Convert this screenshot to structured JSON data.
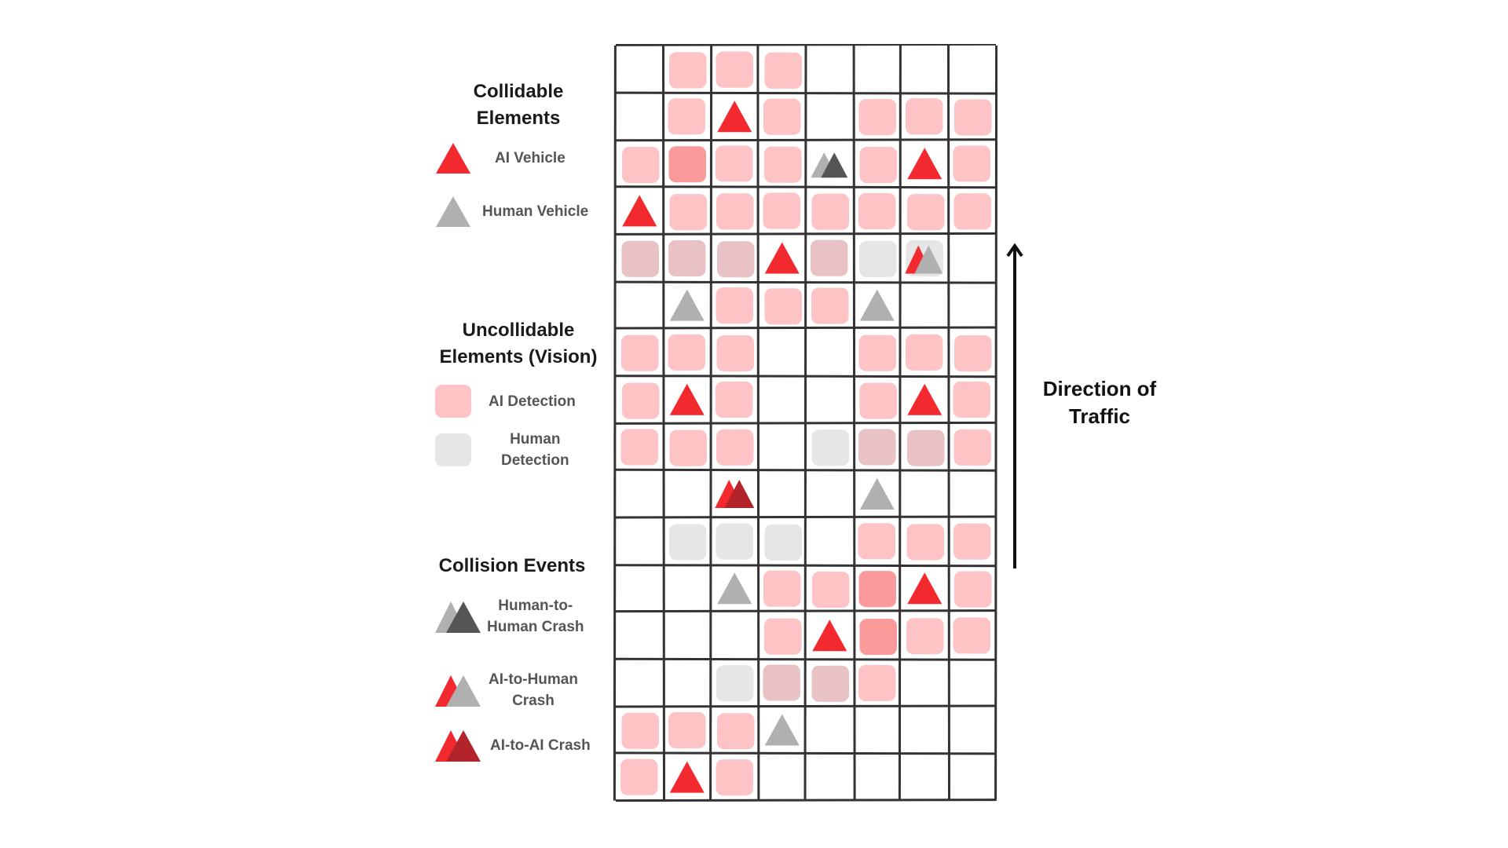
{
  "legend": {
    "collidable_title": "Collidable\nElements",
    "ai_vehicle": "AI Vehicle",
    "human_vehicle": "Human Vehicle",
    "uncollidable_title": "Uncollidable\nElements (Vision)",
    "ai_detection": "AI Detection",
    "human_detection": "Human\nDetection",
    "collision_title": "Collision Events",
    "human_to_human": "Human-to-\nHuman Crash",
    "ai_to_human": "AI-to-Human\nCrash",
    "ai_to_ai": "AI-to-AI Crash"
  },
  "traffic_label": "Direction of\nTraffic",
  "colors": {
    "ai_vehicle": "#f2292e",
    "ai_vehicle_dark": "#b3242a",
    "human_vehicle": "#b0b0b0",
    "human_vehicle_dark": "#555555",
    "ai_detection": "#fdc3c5",
    "ai_detection_strong": "#fb9a9a",
    "overlap_detection": "#e8c2c4",
    "human_detection": "#e6e6e6",
    "grid_line": "#333333"
  },
  "grid": {
    "rows": 16,
    "cols": 8,
    "cells": [
      [
        null,
        {
          "bg": "ai"
        },
        {
          "bg": "ai"
        },
        {
          "bg": "ai"
        },
        null,
        null,
        null,
        null
      ],
      [
        null,
        {
          "bg": "ai"
        },
        {
          "obj": "ai"
        },
        {
          "bg": "ai"
        },
        null,
        {
          "bg": "ai"
        },
        {
          "bg": "ai"
        },
        {
          "bg": "ai"
        }
      ],
      [
        {
          "bg": "ai"
        },
        {
          "bg": "strong"
        },
        {
          "bg": "ai"
        },
        {
          "bg": "ai"
        },
        {
          "obj": "hh"
        },
        {
          "bg": "ai"
        },
        {
          "obj": "ai"
        },
        {
          "bg": "ai"
        }
      ],
      [
        {
          "obj": "ai"
        },
        {
          "bg": "ai"
        },
        {
          "bg": "ai"
        },
        {
          "bg": "ai"
        },
        {
          "bg": "ai"
        },
        {
          "bg": "ai"
        },
        {
          "bg": "ai"
        },
        {
          "bg": "ai"
        }
      ],
      [
        {
          "bg": "overlap"
        },
        {
          "bg": "overlap"
        },
        {
          "bg": "overlap"
        },
        {
          "obj": "ai"
        },
        {
          "bg": "overlap"
        },
        {
          "bg": "human"
        },
        {
          "bg": "human",
          "obj": "ah"
        },
        null
      ],
      [
        null,
        {
          "obj": "human"
        },
        {
          "bg": "ai"
        },
        {
          "bg": "ai"
        },
        {
          "bg": "ai"
        },
        {
          "obj": "human"
        },
        null,
        null
      ],
      [
        {
          "bg": "ai"
        },
        {
          "bg": "ai"
        },
        {
          "bg": "ai"
        },
        null,
        null,
        {
          "bg": "ai"
        },
        {
          "bg": "ai"
        },
        {
          "bg": "ai"
        }
      ],
      [
        {
          "bg": "ai"
        },
        {
          "obj": "ai"
        },
        {
          "bg": "ai"
        },
        null,
        null,
        {
          "bg": "ai"
        },
        {
          "obj": "ai"
        },
        {
          "bg": "ai"
        }
      ],
      [
        {
          "bg": "ai"
        },
        {
          "bg": "ai"
        },
        {
          "bg": "ai"
        },
        null,
        {
          "bg": "human"
        },
        {
          "bg": "overlap"
        },
        {
          "bg": "overlap"
        },
        {
          "bg": "ai"
        }
      ],
      [
        null,
        null,
        {
          "obj": "aa"
        },
        null,
        null,
        {
          "obj": "human"
        },
        null,
        null
      ],
      [
        null,
        {
          "bg": "human"
        },
        {
          "bg": "human"
        },
        {
          "bg": "human"
        },
        null,
        {
          "bg": "ai"
        },
        {
          "bg": "ai"
        },
        {
          "bg": "ai"
        }
      ],
      [
        null,
        null,
        {
          "obj": "human"
        },
        {
          "bg": "ai"
        },
        {
          "bg": "ai"
        },
        {
          "bg": "strong"
        },
        {
          "obj": "ai"
        },
        {
          "bg": "ai"
        }
      ],
      [
        null,
        null,
        null,
        {
          "bg": "ai"
        },
        {
          "obj": "ai"
        },
        {
          "bg": "strong"
        },
        {
          "bg": "ai"
        },
        {
          "bg": "ai"
        }
      ],
      [
        null,
        null,
        {
          "bg": "human"
        },
        {
          "bg": "overlap"
        },
        {
          "bg": "overlap"
        },
        {
          "bg": "ai"
        },
        null,
        null
      ],
      [
        {
          "bg": "ai"
        },
        {
          "bg": "ai"
        },
        {
          "bg": "ai"
        },
        {
          "obj": "human"
        },
        null,
        null,
        null,
        null
      ],
      [
        {
          "bg": "ai"
        },
        {
          "obj": "ai"
        },
        {
          "bg": "ai"
        },
        null,
        null,
        null,
        null,
        null
      ]
    ]
  }
}
